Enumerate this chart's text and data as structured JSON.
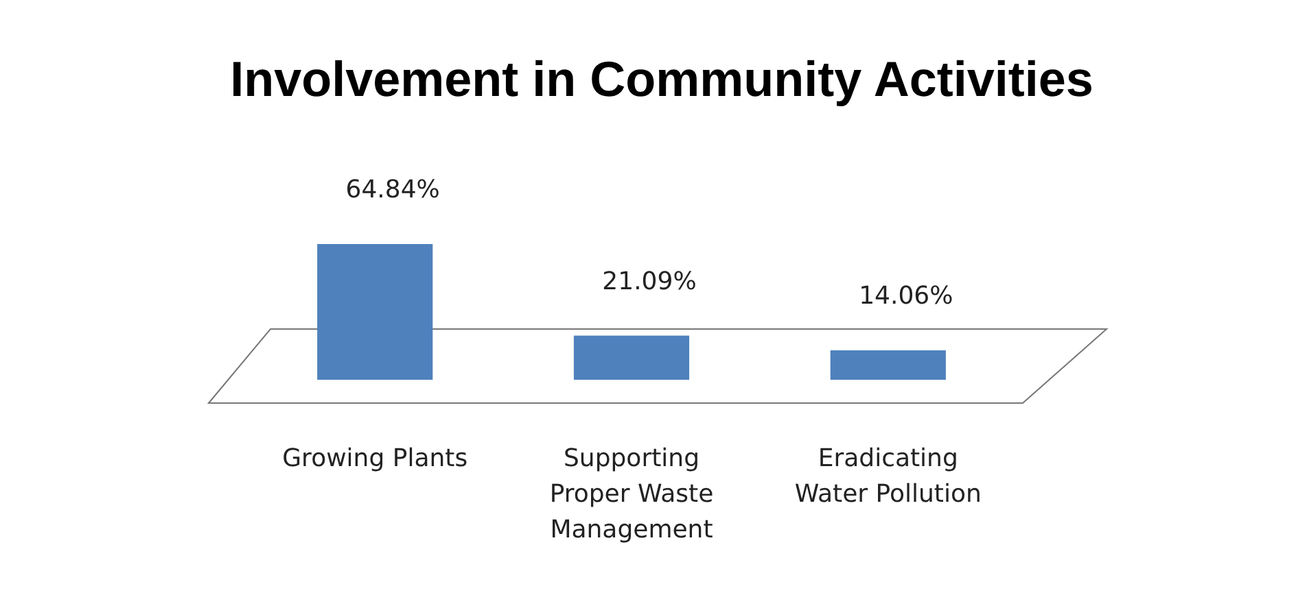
{
  "chart_data": {
    "type": "bar",
    "title": "Involvement in Community Activities",
    "categories": [
      "Growing Plants",
      "Supporting Proper Waste Management",
      "Eradicating Water Pollution"
    ],
    "values": [
      64.84,
      21.09,
      14.06
    ],
    "value_labels": [
      "64.84%",
      "21.09%",
      "14.06%"
    ],
    "color": "#4f81bd"
  }
}
